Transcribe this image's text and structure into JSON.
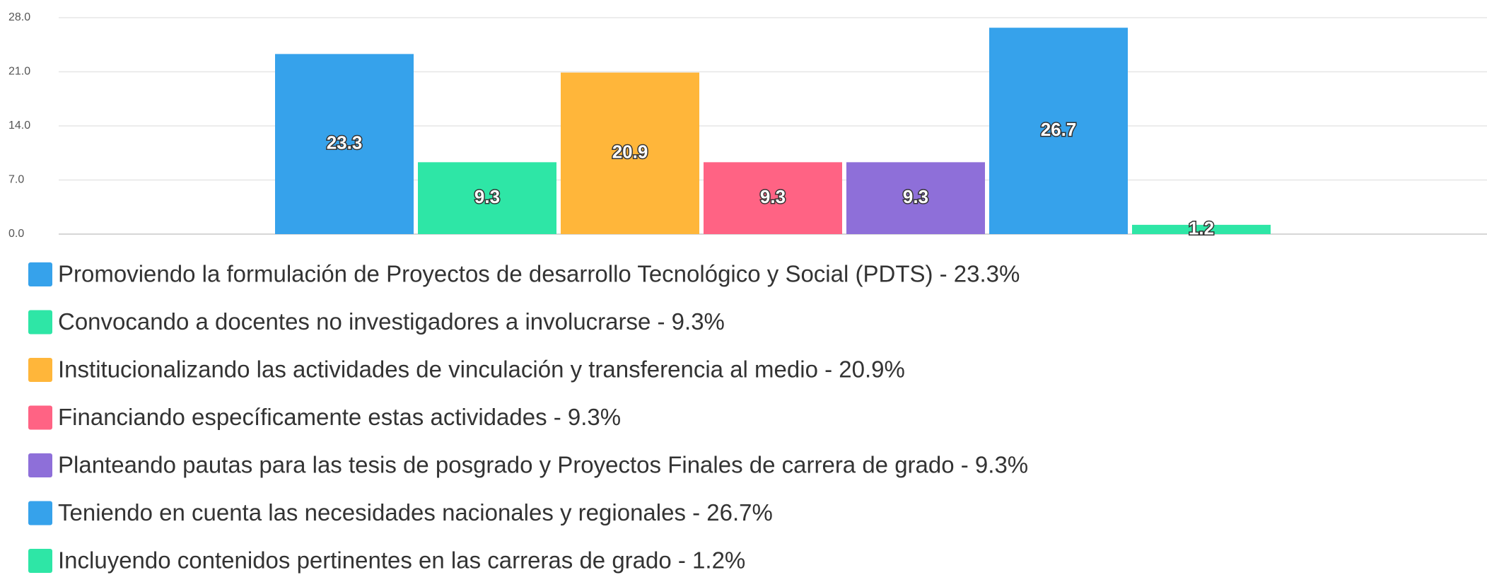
{
  "chart_data": {
    "type": "bar",
    "series": [
      {
        "name": "Promoviendo la formulación de Proyectos de desarrollo Tecnológico y Social (PDTS) - 23.3%",
        "color": "#36a2eb",
        "values": [
          23.3
        ]
      },
      {
        "name": "Convocando a docentes no investigadores a involucrarse - 9.3%",
        "color": "#2ee6a6",
        "values": [
          9.3
        ]
      },
      {
        "name": "Institucionalizando las actividades de vinculación y transferencia al medio - 20.9%",
        "color": "#ffb63a",
        "values": [
          20.9
        ]
      },
      {
        "name": "Financiando específicamente estas actividades - 9.3%",
        "color": "#ff6384",
        "values": [
          9.3
        ]
      },
      {
        "name": "Planteando pautas para las tesis de posgrado y Proyectos Finales de carrera de grado - 9.3%",
        "color": "#8e6fd9",
        "values": [
          9.3
        ]
      },
      {
        "name": "Teniendo en cuenta las necesidades nacionales y regionales - 26.7%",
        "color": "#36a2eb",
        "values": [
          26.7
        ]
      },
      {
        "name": "Incluyendo contenidos pertinentes en las carreras de grado - 1.2%",
        "color": "#2ee6a6",
        "values": [
          1.2
        ]
      }
    ],
    "ylim": [
      0,
      28
    ],
    "yticks": [
      {
        "value": 0,
        "label": "0.0"
      },
      {
        "value": 7,
        "label": "7.0"
      },
      {
        "value": 14,
        "label": "14.0"
      },
      {
        "value": 21,
        "label": "21.0"
      },
      {
        "value": 28,
        "label": "28.0"
      }
    ],
    "grid": true
  }
}
